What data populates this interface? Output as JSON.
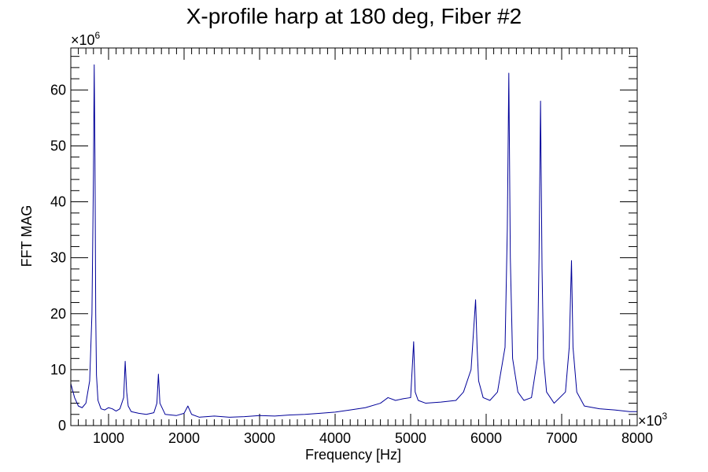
{
  "chart_data": {
    "type": "line",
    "title": "X-profile harp at 180 deg, Fiber #2",
    "xlabel": "Frequency [Hz]",
    "ylabel": "FFT MAG",
    "x_multiplier": "×10",
    "x_multiplier_exp": "3",
    "y_multiplier": "×10",
    "y_multiplier_exp": "6",
    "xlim": [
      500,
      8000
    ],
    "ylim": [
      0,
      67.5
    ],
    "x_ticks": [
      1000,
      2000,
      3000,
      4000,
      5000,
      6000,
      7000,
      8000
    ],
    "x_tick_labels": [
      "1000",
      "2000",
      "3000",
      "4000",
      "5000",
      "6000",
      "7000",
      "8000"
    ],
    "y_ticks": [
      0,
      10,
      20,
      30,
      40,
      50,
      60
    ],
    "y_tick_labels": [
      "0",
      "10",
      "20",
      "30",
      "40",
      "50",
      "60"
    ],
    "grid": false,
    "line_color": "#000099",
    "series": [
      {
        "x": [
          500,
          550,
          600,
          650,
          700,
          750,
          780,
          800,
          810,
          820,
          830,
          840,
          860,
          900,
          950,
          1000,
          1050,
          1100,
          1150,
          1200,
          1220,
          1240,
          1260,
          1300,
          1400,
          1500,
          1600,
          1640,
          1660,
          1680,
          1750,
          1900,
          2000,
          2050,
          2100,
          2200,
          2300,
          2400,
          2600,
          2800,
          3000,
          3200,
          3400,
          3600,
          3800,
          4000,
          4200,
          4400,
          4600,
          4700,
          4800,
          4900,
          5000,
          5040,
          5060,
          5100,
          5200,
          5400,
          5600,
          5700,
          5800,
          5860,
          5880,
          5900,
          5960,
          6050,
          6150,
          6250,
          6280,
          6300,
          6320,
          6350,
          6420,
          6500,
          6600,
          6680,
          6700,
          6720,
          6740,
          6760,
          6800,
          6900,
          7050,
          7100,
          7130,
          7150,
          7200,
          7300,
          7500,
          7700,
          7900,
          8000
        ],
        "y": [
          7.5,
          5.0,
          3.5,
          3.2,
          4.0,
          8.0,
          20.0,
          45.0,
          64.5,
          48.0,
          20.0,
          9.0,
          4.5,
          3.0,
          2.8,
          3.2,
          3.0,
          2.6,
          3.0,
          5.0,
          11.5,
          6.0,
          3.5,
          2.5,
          2.2,
          2.0,
          2.3,
          4.0,
          9.2,
          4.0,
          2.0,
          1.8,
          2.2,
          3.5,
          2.0,
          1.5,
          1.6,
          1.7,
          1.5,
          1.6,
          1.8,
          1.7,
          1.9,
          2.0,
          2.2,
          2.4,
          2.8,
          3.2,
          4.0,
          5.0,
          4.5,
          4.8,
          5.0,
          15.0,
          6.0,
          4.5,
          4.0,
          4.2,
          4.5,
          6.0,
          10.0,
          22.5,
          14.0,
          8.0,
          5.0,
          4.5,
          6.0,
          14.0,
          35.0,
          63.0,
          30.0,
          12.0,
          6.0,
          4.5,
          5.0,
          12.0,
          30.0,
          58.0,
          28.0,
          12.0,
          6.0,
          4.0,
          6.0,
          14.0,
          29.5,
          14.0,
          6.0,
          3.5,
          3.0,
          2.8,
          2.5,
          2.5
        ]
      }
    ]
  }
}
